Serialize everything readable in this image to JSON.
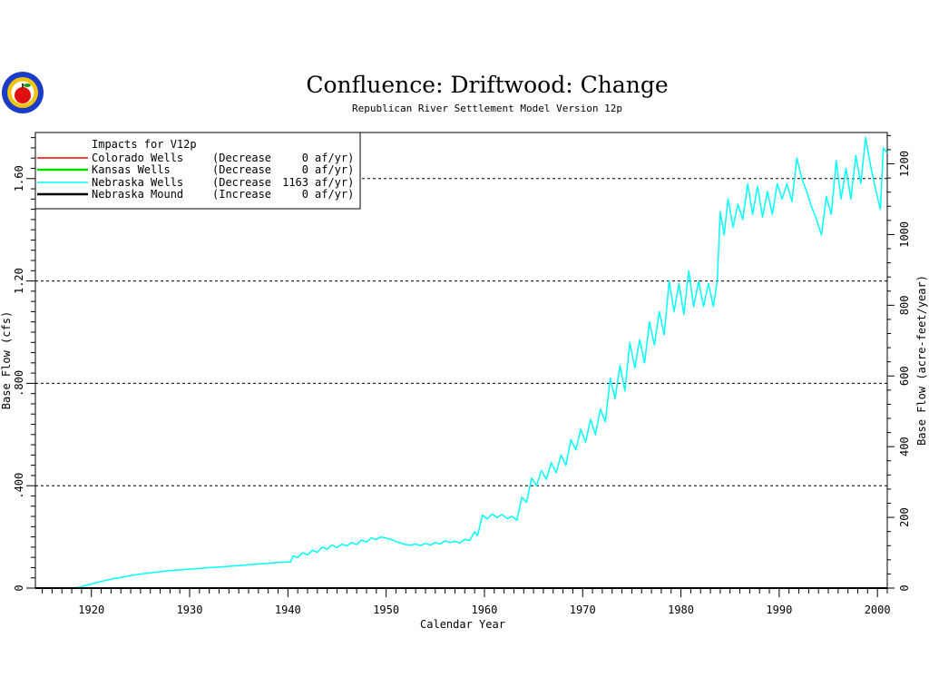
{
  "title": "Confluence: Driftwood: Change",
  "subtitle": "Republican River Settlement Model Version 12p",
  "logo": {
    "icon": "apple-seal-logo",
    "colors": [
      "#1a3cc8",
      "#f2c20c",
      "#e01010",
      "#1e9e1e"
    ]
  },
  "legend": {
    "heading": "Impacts for V12p",
    "entries": [
      {
        "name": "Colorado Wells",
        "note": "(Decrease",
        "value": "0",
        "unit": "af/yr)",
        "color": "#ff0000"
      },
      {
        "name": "Kansas Wells",
        "note": "(Decrease",
        "value": "0",
        "unit": "af/yr)",
        "color": "#00e000"
      },
      {
        "name": "Nebraska Wells",
        "note": "(Decrease",
        "value": "1163",
        "unit": "af/yr)",
        "color": "#00ffff"
      },
      {
        "name": "Nebraska Mound",
        "note": "(Increase",
        "value": "0",
        "unit": "af/yr)",
        "color": "#000000"
      }
    ]
  },
  "chart_data": {
    "type": "line",
    "xlabel": "Calendar Year",
    "ylabel": "Base Flow (cfs)",
    "ylabel_right": "Base Flow (acre-feet/year)",
    "xlim": [
      1914.3,
      2001
    ],
    "ylim": [
      0,
      1.78
    ],
    "ylim_right": [
      0,
      1288.6
    ],
    "x_ticks": [
      "1920",
      "1930",
      "1940",
      "1950",
      "1960",
      "1970",
      "1980",
      "1990",
      "2000"
    ],
    "y_ticks": [
      "0",
      ".400",
      ".800",
      "1.20",
      "1.60"
    ],
    "y_tick_values": [
      0,
      0.4,
      0.8,
      1.2,
      1.6
    ],
    "y_right_ticks": [
      "0",
      "200",
      "400",
      "600",
      "800",
      "1000",
      "1200"
    ],
    "y_right_tick_values": [
      0,
      200,
      400,
      600,
      800,
      1000,
      1200
    ],
    "grid": "dashed horizontal at 0.4, 0.8, 1.2, 1.6",
    "series": [
      {
        "name": "Nebraska Wells",
        "color": "#00ffff",
        "points": [
          [
            1918.2,
            0.0
          ],
          [
            1919.0,
            0.006
          ],
          [
            1920.0,
            0.016
          ],
          [
            1921.0,
            0.026
          ],
          [
            1922.0,
            0.035
          ],
          [
            1923.0,
            0.042
          ],
          [
            1924.0,
            0.049
          ],
          [
            1925.0,
            0.055
          ],
          [
            1926.0,
            0.06
          ],
          [
            1927.0,
            0.064
          ],
          [
            1928.0,
            0.068
          ],
          [
            1929.0,
            0.071
          ],
          [
            1930.0,
            0.074
          ],
          [
            1931.0,
            0.077
          ],
          [
            1932.0,
            0.08
          ],
          [
            1933.0,
            0.082
          ],
          [
            1934.0,
            0.085
          ],
          [
            1935.0,
            0.088
          ],
          [
            1936.0,
            0.091
          ],
          [
            1937.0,
            0.094
          ],
          [
            1938.0,
            0.097
          ],
          [
            1939.0,
            0.1
          ],
          [
            1940.3,
            0.103
          ],
          [
            1940.5,
            0.125
          ],
          [
            1941.0,
            0.12
          ],
          [
            1941.5,
            0.138
          ],
          [
            1942.0,
            0.13
          ],
          [
            1942.5,
            0.148
          ],
          [
            1943.0,
            0.14
          ],
          [
            1943.5,
            0.16
          ],
          [
            1944.0,
            0.152
          ],
          [
            1944.5,
            0.168
          ],
          [
            1945.0,
            0.158
          ],
          [
            1945.5,
            0.172
          ],
          [
            1946.0,
            0.165
          ],
          [
            1946.5,
            0.178
          ],
          [
            1947.0,
            0.17
          ],
          [
            1947.5,
            0.188
          ],
          [
            1948.0,
            0.18
          ],
          [
            1948.5,
            0.196
          ],
          [
            1949.0,
            0.19
          ],
          [
            1949.5,
            0.2
          ],
          [
            1950.0,
            0.195
          ],
          [
            1950.5,
            0.19
          ],
          [
            1951.0,
            0.182
          ],
          [
            1951.5,
            0.176
          ],
          [
            1952.0,
            0.17
          ],
          [
            1952.5,
            0.168
          ],
          [
            1953.0,
            0.172
          ],
          [
            1953.5,
            0.166
          ],
          [
            1954.0,
            0.175
          ],
          [
            1954.5,
            0.168
          ],
          [
            1955.0,
            0.178
          ],
          [
            1955.5,
            0.172
          ],
          [
            1956.0,
            0.185
          ],
          [
            1956.5,
            0.178
          ],
          [
            1957.0,
            0.183
          ],
          [
            1957.5,
            0.176
          ],
          [
            1958.0,
            0.19
          ],
          [
            1958.5,
            0.186
          ],
          [
            1959.0,
            0.22
          ],
          [
            1959.3,
            0.205
          ],
          [
            1959.8,
            0.285
          ],
          [
            1960.3,
            0.27
          ],
          [
            1960.8,
            0.29
          ],
          [
            1961.3,
            0.275
          ],
          [
            1961.8,
            0.288
          ],
          [
            1962.3,
            0.272
          ],
          [
            1962.8,
            0.28
          ],
          [
            1963.3,
            0.265
          ],
          [
            1963.8,
            0.355
          ],
          [
            1964.3,
            0.335
          ],
          [
            1964.8,
            0.43
          ],
          [
            1965.3,
            0.4
          ],
          [
            1965.8,
            0.46
          ],
          [
            1966.3,
            0.425
          ],
          [
            1966.8,
            0.49
          ],
          [
            1967.3,
            0.45
          ],
          [
            1967.8,
            0.52
          ],
          [
            1968.3,
            0.48
          ],
          [
            1968.8,
            0.58
          ],
          [
            1969.3,
            0.54
          ],
          [
            1969.8,
            0.62
          ],
          [
            1970.3,
            0.57
          ],
          [
            1970.8,
            0.66
          ],
          [
            1971.3,
            0.6
          ],
          [
            1971.8,
            0.7
          ],
          [
            1972.3,
            0.65
          ],
          [
            1972.8,
            0.82
          ],
          [
            1973.3,
            0.74
          ],
          [
            1973.8,
            0.87
          ],
          [
            1974.3,
            0.77
          ],
          [
            1974.8,
            0.96
          ],
          [
            1975.3,
            0.86
          ],
          [
            1975.8,
            0.97
          ],
          [
            1976.3,
            0.88
          ],
          [
            1976.8,
            1.04
          ],
          [
            1977.3,
            0.95
          ],
          [
            1977.8,
            1.08
          ],
          [
            1978.3,
            0.99
          ],
          [
            1978.8,
            1.2
          ],
          [
            1979.3,
            1.08
          ],
          [
            1979.8,
            1.19
          ],
          [
            1980.3,
            1.07
          ],
          [
            1980.8,
            1.24
          ],
          [
            1981.3,
            1.1
          ],
          [
            1981.8,
            1.2
          ],
          [
            1982.3,
            1.1
          ],
          [
            1982.8,
            1.19
          ],
          [
            1983.3,
            1.1
          ],
          [
            1983.7,
            1.2
          ],
          [
            1984.0,
            1.47
          ],
          [
            1984.4,
            1.38
          ],
          [
            1984.8,
            1.52
          ],
          [
            1985.3,
            1.41
          ],
          [
            1985.8,
            1.5
          ],
          [
            1986.3,
            1.44
          ],
          [
            1986.8,
            1.58
          ],
          [
            1987.3,
            1.46
          ],
          [
            1987.8,
            1.57
          ],
          [
            1988.3,
            1.45
          ],
          [
            1988.8,
            1.55
          ],
          [
            1989.3,
            1.46
          ],
          [
            1989.8,
            1.58
          ],
          [
            1990.3,
            1.52
          ],
          [
            1990.8,
            1.58
          ],
          [
            1991.3,
            1.51
          ],
          [
            1991.8,
            1.68
          ],
          [
            1992.3,
            1.6
          ],
          [
            1992.8,
            1.55
          ],
          [
            1993.3,
            1.49
          ],
          [
            1993.8,
            1.44
          ],
          [
            1994.3,
            1.38
          ],
          [
            1994.8,
            1.53
          ],
          [
            1995.3,
            1.46
          ],
          [
            1995.8,
            1.67
          ],
          [
            1996.3,
            1.52
          ],
          [
            1996.8,
            1.64
          ],
          [
            1997.3,
            1.52
          ],
          [
            1997.8,
            1.69
          ],
          [
            1998.3,
            1.58
          ],
          [
            1998.8,
            1.76
          ],
          [
            1999.3,
            1.65
          ],
          [
            1999.8,
            1.56
          ],
          [
            2000.3,
            1.48
          ],
          [
            2000.6,
            1.72
          ],
          [
            2001.0,
            1.7
          ]
        ]
      },
      {
        "name": "Nebraska Mound",
        "color": "#000000",
        "points": [
          [
            1914.3,
            0.0
          ],
          [
            2001.0,
            0.0
          ]
        ]
      }
    ]
  }
}
